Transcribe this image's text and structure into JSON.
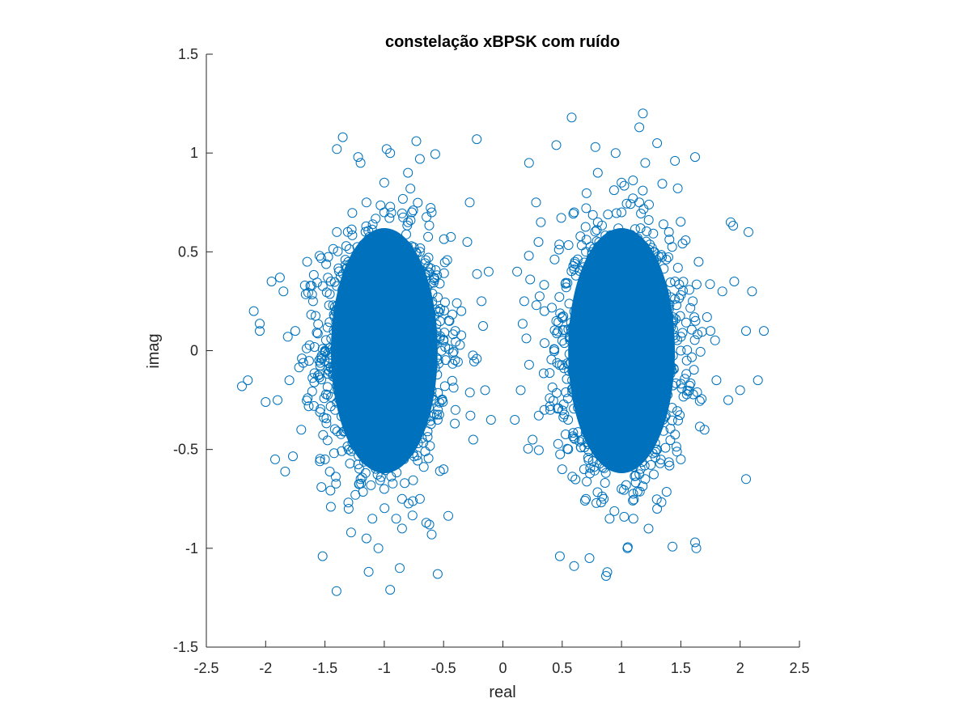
{
  "chart_data": {
    "type": "scatter",
    "title": "constelação xBPSK com ruído",
    "xlabel": "real",
    "ylabel": "imag",
    "xlim": [
      -2.5,
      2.5
    ],
    "ylim": [
      -1.5,
      1.5
    ],
    "xticks": [
      -2.5,
      -2,
      -1.5,
      -1,
      -0.5,
      0,
      0.5,
      1,
      1.5,
      2,
      2.5
    ],
    "xtick_labels": [
      "-2.5",
      "-2",
      "-1.5",
      "-1",
      "-0.5",
      "0",
      "0.5",
      "1",
      "1.5",
      "2",
      "2.5"
    ],
    "yticks": [
      -1.5,
      -1,
      -0.5,
      0,
      0.5,
      1,
      1.5
    ],
    "ytick_labels": [
      "-1.5",
      "-1",
      "-0.5",
      "0",
      "0.5",
      "1",
      "1.5"
    ],
    "grid": false,
    "marker": "circle-open",
    "color": "#0072BD",
    "series": [
      {
        "x": [
          -1.0,
          -1.05,
          -0.95,
          -1.1,
          -0.9,
          -1.0,
          -0.8,
          -1.2,
          -0.7,
          -1.3,
          -0.65,
          -1.35,
          -0.6,
          -1.4,
          -1.0,
          -0.85,
          -1.15,
          -1.25,
          -0.75,
          -1.45,
          -0.55,
          -1.5,
          -0.5,
          -1.55,
          -0.45,
          -1.6,
          -1.0,
          -0.9,
          -1.1,
          -0.95,
          -1.05,
          -1.2,
          -0.8,
          -1.3,
          -0.7,
          -1.4,
          -0.6,
          -1.5,
          -0.5,
          -1.65,
          -0.4,
          -1.7,
          -0.35,
          -1.75,
          -0.3,
          -1.8,
          -0.25,
          -1.85,
          -1.9,
          -1.95,
          -2.05,
          -2.15,
          -2.2,
          -2.1,
          -2.0,
          -1.92,
          -1.88,
          -0.22,
          -0.28,
          -0.18,
          -0.15,
          -0.12,
          -0.1,
          -0.95,
          -0.55,
          -1.52,
          -1.35,
          -0.73,
          -1.4,
          -0.87,
          -0.6,
          -1.22,
          -0.98,
          -1.15,
          -0.7,
          -0.85,
          -1.28,
          -0.78,
          -0.62,
          -1.45
        ],
        "y": [
          0.0,
          0.3,
          -0.3,
          0.55,
          -0.55,
          0.7,
          0.65,
          -0.65,
          0.5,
          -0.5,
          0.2,
          0.1,
          -0.2,
          -0.1,
          -0.7,
          -0.75,
          0.75,
          0.4,
          -0.4,
          0.35,
          -0.35,
          0.0,
          0.05,
          -0.05,
          0.15,
          0.25,
          0.85,
          -0.85,
          -0.85,
          1.0,
          -1.0,
          0.95,
          0.9,
          -0.8,
          -0.75,
          0.6,
          0.7,
          -0.55,
          -0.6,
          0.45,
          -0.3,
          -0.4,
          0.2,
          0.1,
          0.55,
          -0.15,
          -0.45,
          0.3,
          -0.25,
          0.35,
          0.1,
          -0.15,
          -0.18,
          0.2,
          -0.26,
          -0.55,
          0.37,
          1.07,
          0.75,
          0.25,
          -0.2,
          0.4,
          -0.35,
          -1.21,
          -1.13,
          -1.04,
          1.08,
          1.06,
          1.02,
          -1.1,
          -0.93,
          0.98,
          1.02,
          -0.95,
          0.97,
          -0.9,
          -0.92,
          0.82,
          -0.88,
          -0.79
        ]
      },
      {
        "x": [
          1.0,
          0.95,
          1.05,
          0.9,
          1.1,
          1.0,
          0.8,
          1.2,
          0.7,
          1.3,
          0.65,
          1.35,
          0.6,
          1.4,
          1.0,
          0.85,
          1.15,
          1.25,
          0.75,
          1.45,
          0.55,
          1.5,
          0.5,
          1.55,
          0.45,
          1.6,
          1.0,
          0.9,
          1.1,
          0.95,
          1.05,
          1.2,
          0.8,
          1.3,
          0.7,
          1.4,
          0.6,
          1.5,
          0.5,
          1.65,
          0.4,
          1.7,
          0.35,
          1.75,
          0.3,
          1.8,
          0.25,
          1.85,
          1.9,
          1.95,
          2.05,
          2.15,
          2.2,
          2.1,
          2.0,
          1.92,
          0.22,
          0.28,
          0.18,
          0.15,
          0.12,
          0.1,
          0.58,
          1.18,
          1.15,
          0.88,
          0.87,
          0.48,
          0.6,
          1.62,
          1.63,
          0.73,
          0.78,
          2.05,
          2.07,
          1.62,
          1.3,
          1.45,
          0.45,
          0.32
        ],
        "y": [
          0.0,
          0.3,
          -0.3,
          0.55,
          -0.55,
          0.7,
          0.65,
          -0.65,
          0.5,
          -0.5,
          0.2,
          0.1,
          -0.2,
          -0.1,
          -0.7,
          -0.75,
          0.75,
          0.4,
          -0.4,
          0.35,
          -0.35,
          0.0,
          0.05,
          -0.05,
          0.15,
          0.25,
          0.85,
          -0.85,
          -0.85,
          1.0,
          -1.0,
          0.95,
          0.9,
          -0.8,
          -0.75,
          0.6,
          0.7,
          -0.55,
          -0.6,
          0.45,
          -0.3,
          -0.4,
          0.2,
          0.1,
          0.55,
          -0.15,
          -0.45,
          0.3,
          -0.25,
          0.35,
          0.1,
          -0.15,
          0.1,
          0.3,
          -0.2,
          0.65,
          0.95,
          0.75,
          0.25,
          -0.2,
          0.4,
          -0.35,
          1.18,
          1.2,
          1.13,
          -1.12,
          -1.14,
          -1.04,
          -1.09,
          -0.97,
          -1.0,
          -1.05,
          1.03,
          -0.65,
          0.6,
          0.98,
          1.05,
          0.96,
          1.04,
          0.65
        ]
      }
    ]
  }
}
